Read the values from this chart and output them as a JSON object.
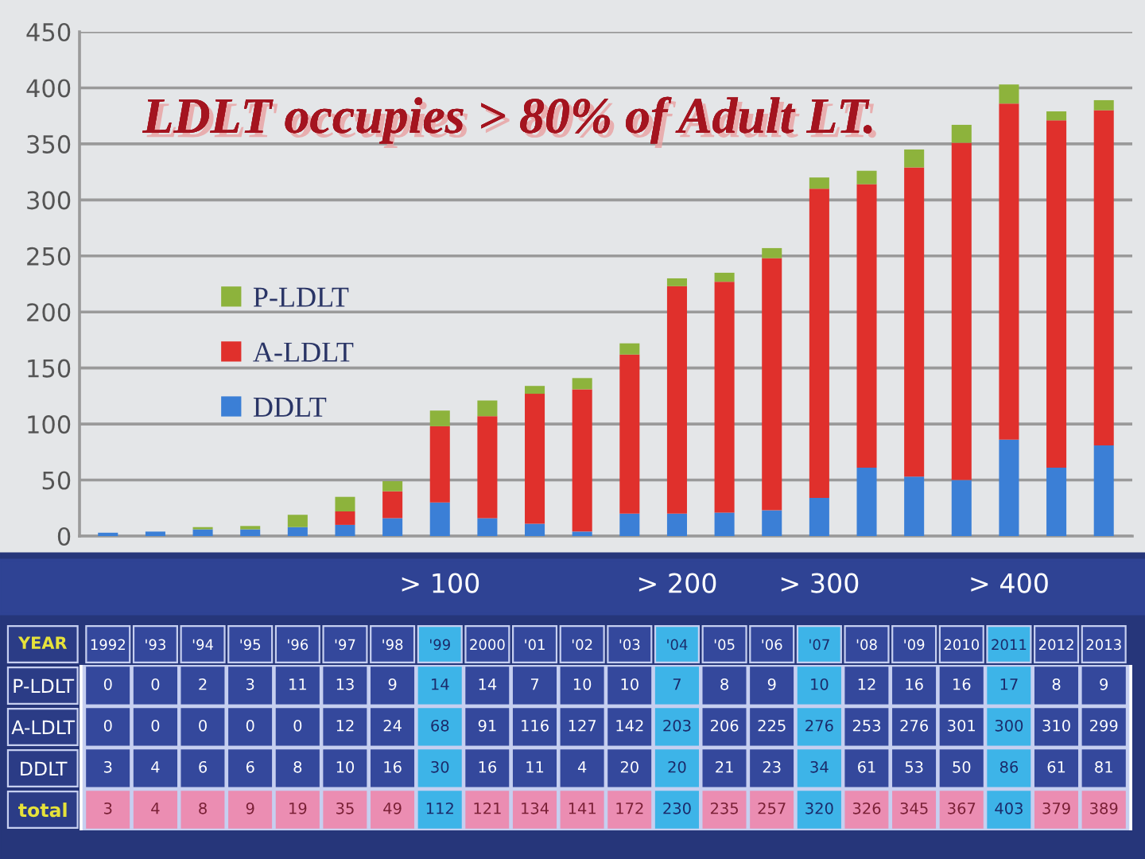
{
  "chart_data": [
    {
      "type": "bar",
      "title": "LDLT occupies > 80% of Adult LT.",
      "categories": [
        null,
        null,
        null,
        null,
        null,
        null,
        null,
        null,
        null,
        null,
        null,
        null,
        null,
        null,
        null,
        null,
        null,
        null,
        null,
        null,
        null,
        null
      ],
      "stacked": true,
      "series": [
        {
          "name": "DDLT",
          "color": "#3b7fd6",
          "values": [
            3,
            4,
            6,
            6,
            8,
            10,
            16,
            30,
            16,
            11,
            4,
            20,
            20,
            21,
            23,
            34,
            61,
            53,
            50,
            86,
            61,
            81
          ]
        },
        {
          "name": "A-LDLT",
          "color": "#e0302c",
          "values": [
            0,
            0,
            0,
            0,
            0,
            12,
            24,
            68,
            91,
            116,
            127,
            142,
            203,
            206,
            225,
            276,
            253,
            276,
            301,
            300,
            310,
            299
          ]
        },
        {
          "name": "P-LDLT",
          "color": "#8db33c",
          "values": [
            0,
            0,
            2,
            3,
            11,
            13,
            9,
            14,
            14,
            7,
            10,
            10,
            7,
            8,
            9,
            10,
            12,
            16,
            16,
            17,
            8,
            9
          ]
        }
      ],
      "ylim": [
        0,
        450
      ],
      "yticks": [
        0,
        50,
        100,
        150,
        200,
        250,
        300,
        350,
        400,
        450
      ],
      "grid": "y",
      "legend": "center left",
      "tick_labels": "y"
    },
    {
      "type": "heatmap",
      "xlabel": "YEAR",
      "categories": [
        "1992",
        "'93",
        "'94",
        "'95",
        "'96",
        "'97",
        "'98",
        "'99",
        "2000",
        "'01",
        "'02",
        "'03",
        "'04",
        "'05",
        "'06",
        "'07",
        "'08",
        "'09",
        "2010",
        "2011",
        "2012",
        "2013"
      ],
      "y_categories": [
        "P-LDLT",
        "A-LDLT",
        "DDLT",
        "total"
      ],
      "cells": [
        [
          0,
          0,
          2,
          3,
          11,
          13,
          9,
          14,
          14,
          7,
          10,
          10,
          7,
          8,
          9,
          10,
          12,
          16,
          16,
          17,
          8,
          9
        ],
        [
          0,
          0,
          0,
          0,
          0,
          12,
          24,
          68,
          91,
          116,
          127,
          142,
          203,
          206,
          225,
          276,
          253,
          276,
          301,
          300,
          310,
          299
        ],
        [
          3,
          4,
          6,
          6,
          8,
          10,
          16,
          30,
          16,
          11,
          4,
          20,
          20,
          21,
          23,
          34,
          61,
          53,
          50,
          86,
          61,
          81
        ],
        [
          3,
          4,
          8,
          9,
          19,
          35,
          49,
          112,
          121,
          134,
          141,
          172,
          230,
          235,
          257,
          320,
          326,
          345,
          367,
          403,
          379,
          389
        ]
      ],
      "data_labels": true,
      "annotations": [
        "> 100",
        "> 200",
        "> 300",
        "> 400"
      ]
    }
  ]
}
